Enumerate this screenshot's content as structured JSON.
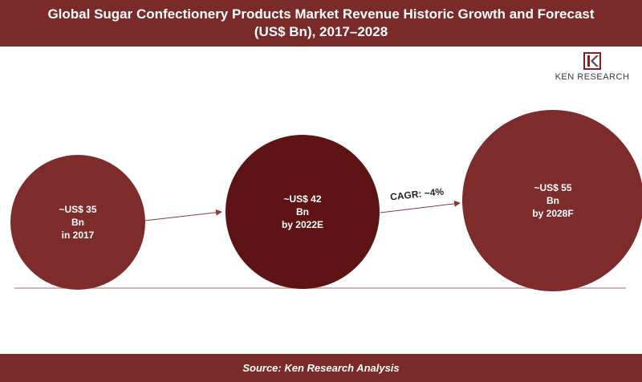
{
  "header": {
    "title_line1": "Global Sugar Confectionery Products Market Revenue Historic Growth and Forecast",
    "title_line2": "(US$ Bn), 2017–2028"
  },
  "logo": {
    "text": "KEN RESEARCH",
    "icon": "ken-research-logo"
  },
  "footer": {
    "source": "Source: Ken Research Analysis"
  },
  "colors": {
    "header_bg": "#7b2a2a",
    "bubble_2017": "#7e2b2b",
    "bubble_2022": "#5e1414",
    "bubble_2028": "#7e2b2b",
    "baseline": "#b88a8a"
  },
  "chart_data": {
    "type": "bubble",
    "title": "Global Sugar Confectionery Products Market Revenue Historic Growth and Forecast (US$ Bn), 2017–2028",
    "unit": "US$ Bn",
    "points": [
      {
        "year": "2017",
        "value": 35,
        "label_lines": [
          "~US$ 35",
          "Bn",
          "in 2017"
        ]
      },
      {
        "year": "2022E",
        "value": 42,
        "label_lines": [
          "~US$ 42",
          "Bn",
          "by 2022E"
        ]
      },
      {
        "year": "2028F",
        "value": 55,
        "label_lines": [
          "~US$ 55",
          "Bn",
          "by 2028F"
        ]
      }
    ],
    "annotations": [
      {
        "text": "CAGR: ~4%",
        "between": [
          "2022E",
          "2028F"
        ]
      }
    ]
  }
}
